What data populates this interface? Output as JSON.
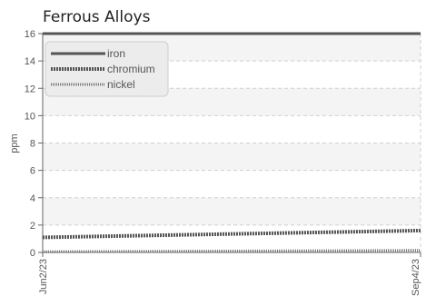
{
  "chart_data": {
    "type": "line",
    "title": "Ferrous Alloys",
    "xlabel": "",
    "ylabel": "ppm",
    "xlim": [
      "Jun2/23",
      "Sep4/23"
    ],
    "ylim": [
      0,
      16
    ],
    "yticks": [
      0,
      2,
      4,
      6,
      8,
      10,
      12,
      14,
      16
    ],
    "xticks": [
      "Jun2/23",
      "Sep4/23"
    ],
    "grid": true,
    "legend_position": "top-left",
    "series": [
      {
        "name": "iron",
        "color": "#555555",
        "style": "solid",
        "x": [
          "Jun2/23",
          "Sep4/23"
        ],
        "y": [
          16,
          16
        ]
      },
      {
        "name": "chromium",
        "color": "#555555",
        "style": "dashed-thick",
        "x": [
          "Jun2/23",
          "Sep4/23"
        ],
        "y": [
          1.1,
          1.6
        ]
      },
      {
        "name": "nickel",
        "color": "#777777",
        "style": "dotted",
        "x": [
          "Jun2/23",
          "Sep4/23"
        ],
        "y": [
          0.05,
          0.15
        ]
      }
    ]
  }
}
